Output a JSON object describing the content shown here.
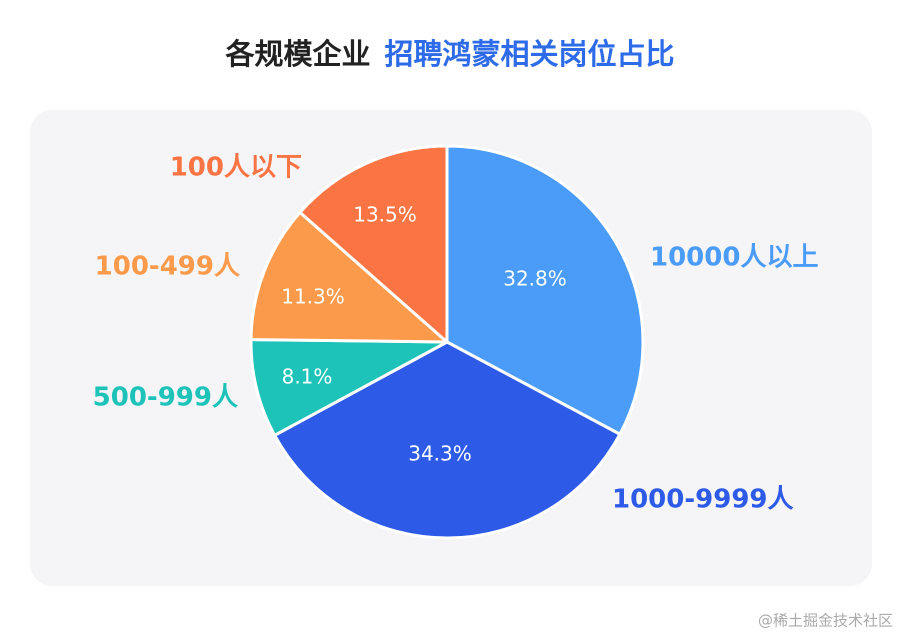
{
  "chart_data": {
    "type": "pie",
    "title_parts": [
      "各规模企业",
      "招聘鸿蒙相关岗位占比"
    ],
    "categories": [
      "10000人以上",
      "1000-9999人",
      "500-999人",
      "100-499人",
      "100人以下"
    ],
    "values": [
      32.8,
      34.3,
      8.1,
      11.3,
      13.5
    ],
    "value_labels": [
      "32.8%",
      "34.3%",
      "8.1%",
      "11.3%",
      "13.5%"
    ],
    "colors": [
      "#4a9cf8",
      "#2d5be8",
      "#1dc3b8",
      "#fb9a4a",
      "#fb7444"
    ]
  },
  "watermark": "@稀土掘金技术社区"
}
